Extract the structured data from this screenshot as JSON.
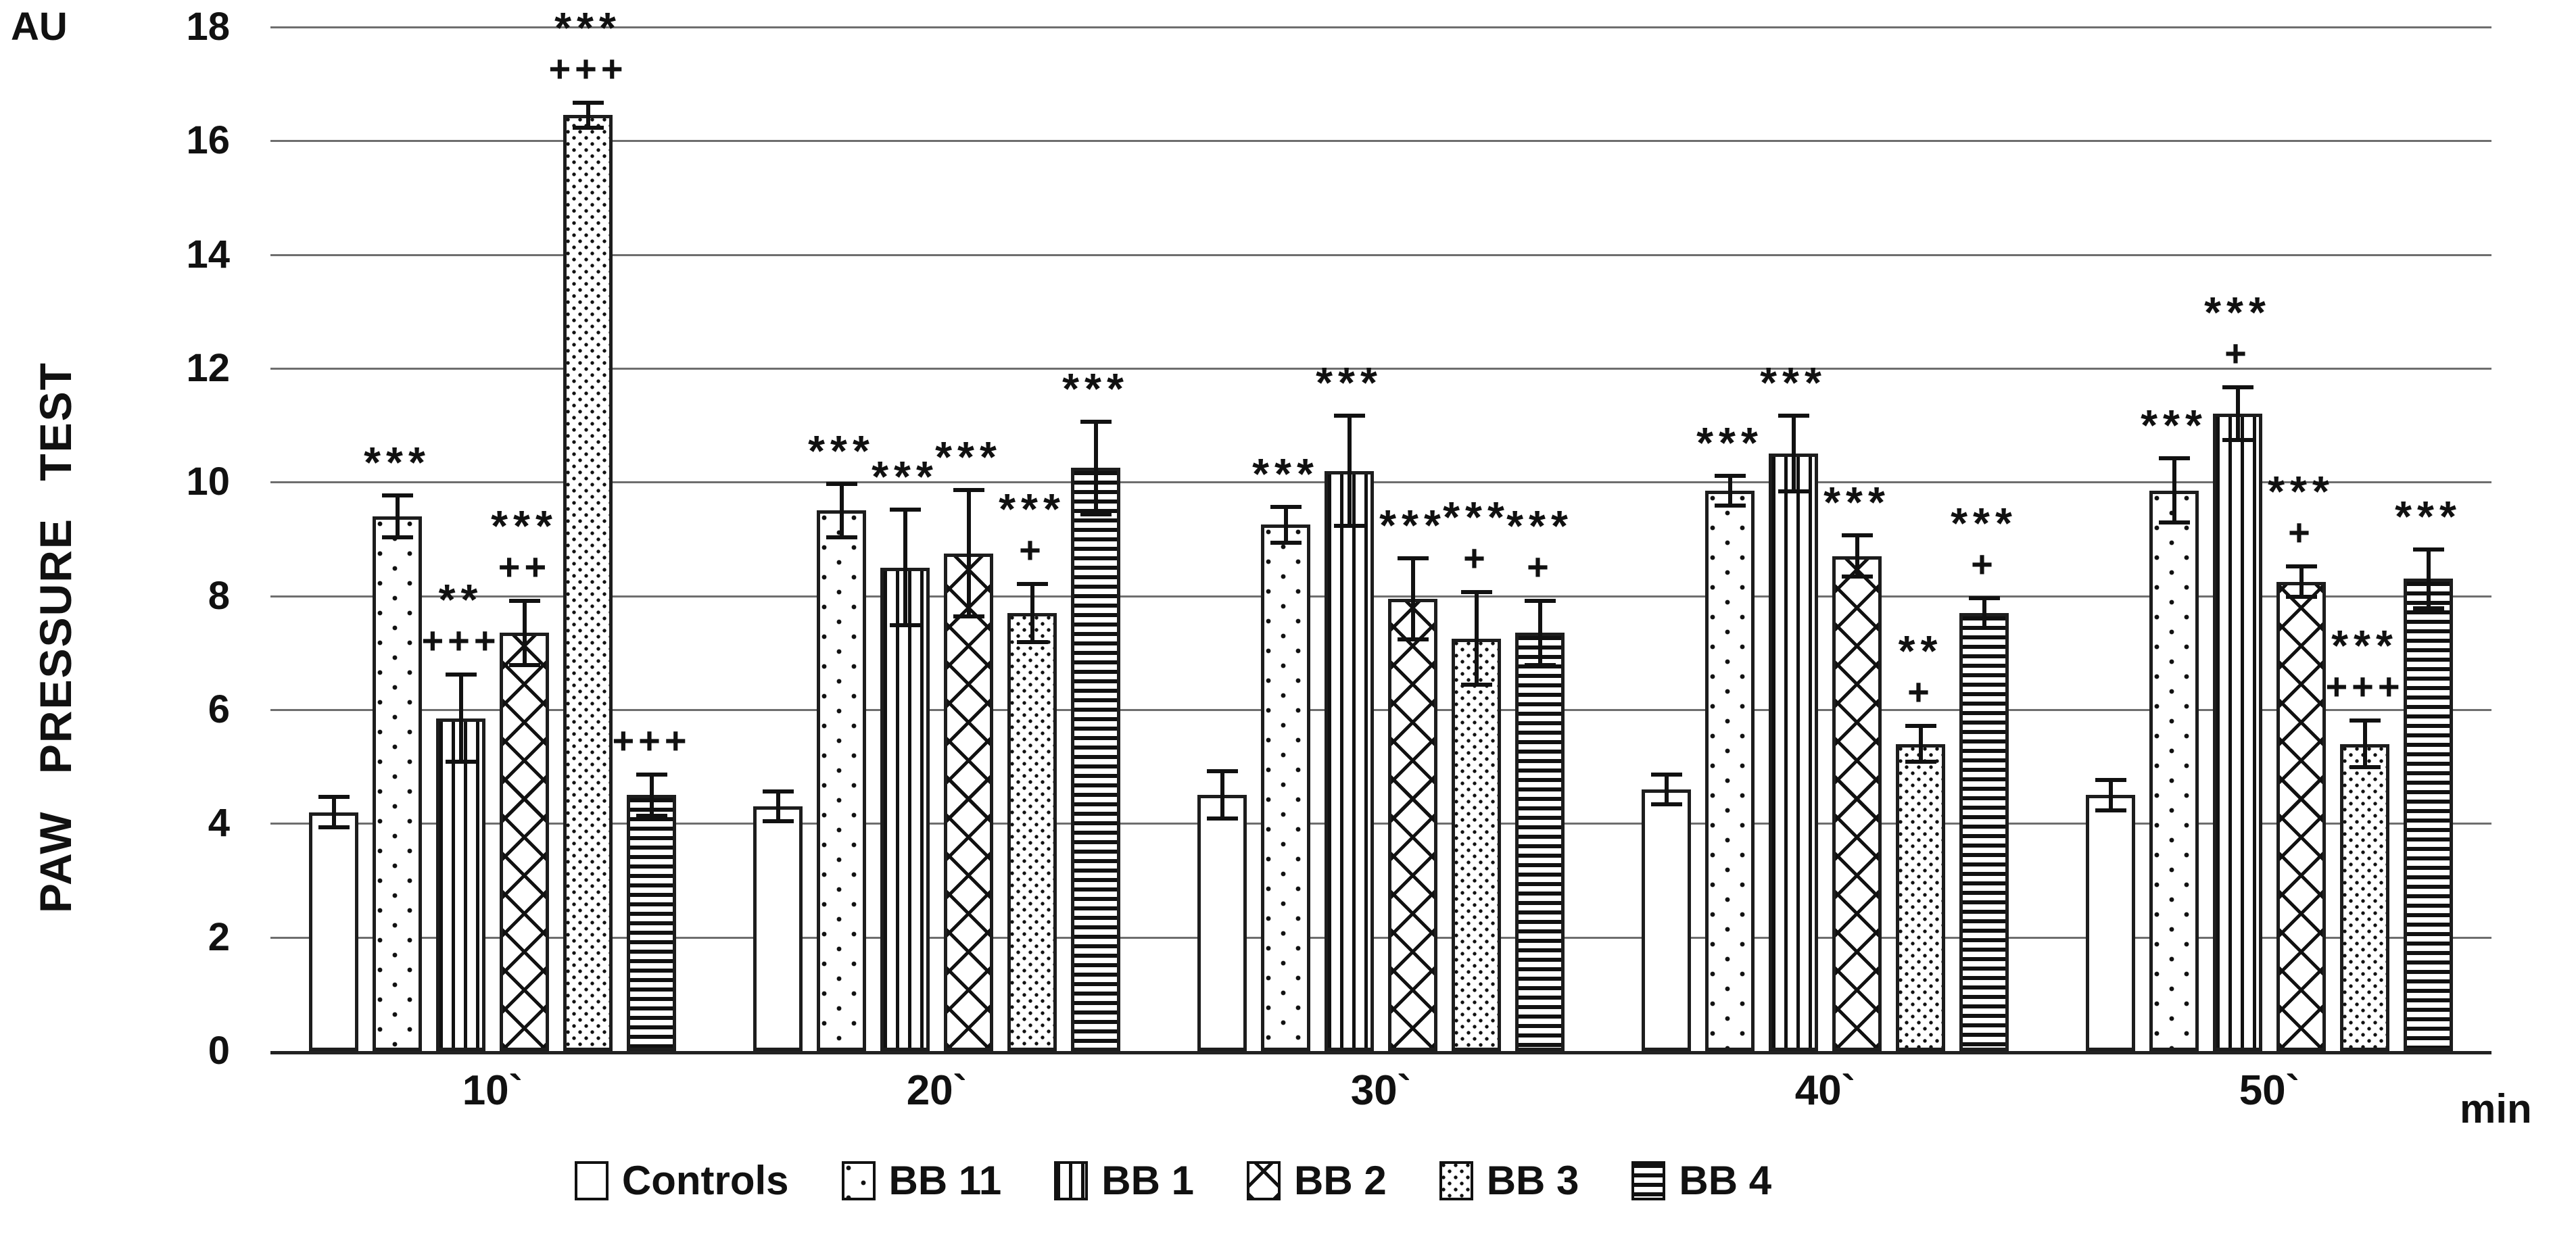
{
  "figure": {
    "y_unit_label": "AU",
    "x_unit_label": "min"
  },
  "chart_data": {
    "type": "bar",
    "title": "",
    "ylabel": "PAW PRESSURE TEST",
    "y_unit": "AU",
    "xlabel": "min",
    "ylim": [
      0,
      18
    ],
    "ytick_step": 2,
    "yticks": [
      18,
      16,
      14,
      12,
      10,
      8,
      6,
      4,
      2,
      0
    ],
    "grid": true,
    "legend_position": "bottom",
    "categories": [
      "10`",
      "20`",
      "30`",
      "40`",
      "50`"
    ],
    "series": [
      {
        "name": "Controls",
        "pattern": "plain-white",
        "values": [
          4.2,
          4.3,
          4.5,
          4.6,
          4.5
        ],
        "errors": [
          0.3,
          0.3,
          0.45,
          0.3,
          0.3
        ],
        "annotations": [
          [],
          [],
          [],
          [],
          []
        ]
      },
      {
        "name": "BB 11",
        "pattern": "sparse-dots",
        "values": [
          9.4,
          9.5,
          9.25,
          9.85,
          9.85
        ],
        "errors": [
          0.4,
          0.5,
          0.35,
          0.3,
          0.6
        ],
        "annotations": [
          [
            "***"
          ],
          [
            "***"
          ],
          [
            "***"
          ],
          [
            "***"
          ],
          [
            "***"
          ]
        ]
      },
      {
        "name": "BB 1",
        "pattern": "vertical-stripes",
        "values": [
          5.85,
          8.5,
          10.2,
          10.5,
          11.2
        ],
        "errors": [
          0.8,
          1.05,
          1.0,
          0.7,
          0.5
        ],
        "annotations": [
          [
            "**",
            "+++"
          ],
          [
            "***"
          ],
          [
            "***"
          ],
          [
            "***"
          ],
          [
            "***",
            "+"
          ]
        ]
      },
      {
        "name": "BB 2",
        "pattern": "diagonal-crosshatch",
        "values": [
          7.35,
          8.75,
          7.95,
          8.7,
          8.25
        ],
        "errors": [
          0.6,
          1.15,
          0.75,
          0.4,
          0.3
        ],
        "annotations": [
          [
            "***",
            "++"
          ],
          [
            "***"
          ],
          [
            "***"
          ],
          [
            "***"
          ],
          [
            "***",
            "+"
          ]
        ]
      },
      {
        "name": "BB 3",
        "pattern": "dense-dots",
        "values": [
          16.45,
          7.7,
          7.25,
          5.4,
          5.4
        ],
        "errors": [
          0.25,
          0.55,
          0.85,
          0.35,
          0.45
        ],
        "annotations": [
          [
            "***",
            "+++"
          ],
          [
            "***",
            "+"
          ],
          [
            "***",
            "+"
          ],
          [
            "**",
            "+"
          ],
          [
            "***",
            "+++"
          ]
        ]
      },
      {
        "name": "BB 4",
        "pattern": "horizontal-stripes",
        "values": [
          4.5,
          10.25,
          7.35,
          7.7,
          8.3
        ],
        "errors": [
          0.4,
          0.85,
          0.6,
          0.3,
          0.55
        ],
        "annotations": [
          [
            "+++"
          ],
          [
            "***"
          ],
          [
            "***",
            "+"
          ],
          [
            "***",
            "+"
          ],
          [
            "***"
          ]
        ]
      }
    ]
  }
}
